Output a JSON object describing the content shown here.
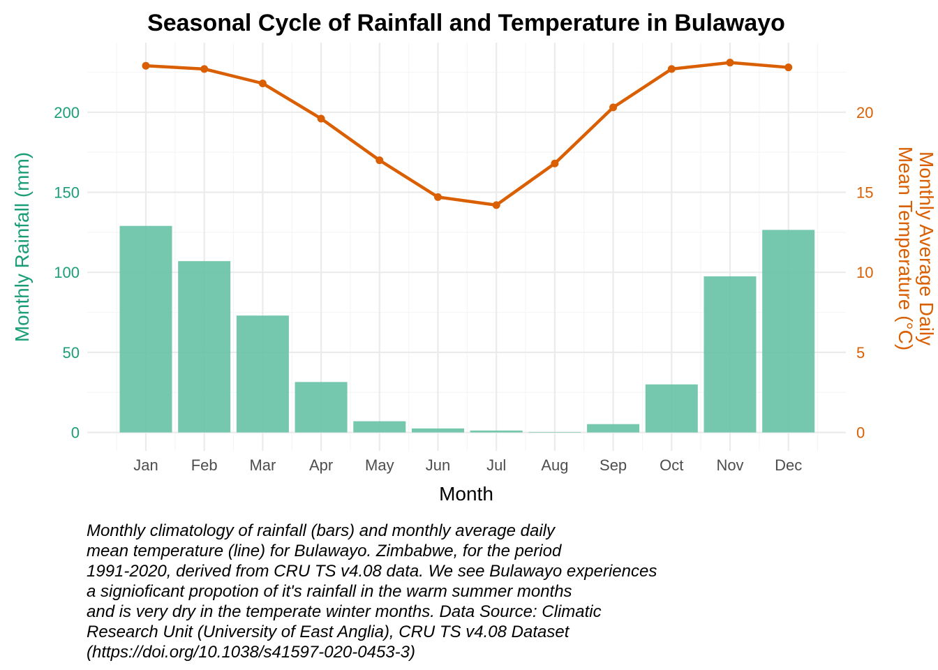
{
  "chart_data": {
    "type": "bar+line",
    "title": "Seasonal Cycle of Rainfall and Temperature in Bulawayo",
    "xlabel": "Month",
    "ylabel_left": "Monthly Rainfall (mm)",
    "ylabel_right": [
      "Monthly Average Daily",
      "Mean Temperature (°C)"
    ],
    "categories": [
      "Jan",
      "Feb",
      "Mar",
      "Apr",
      "May",
      "Jun",
      "Jul",
      "Aug",
      "Sep",
      "Oct",
      "Nov",
      "Dec"
    ],
    "series": [
      {
        "type": "bar",
        "axis": "left",
        "color": "#66c2a5",
        "values": [
          129,
          107,
          73,
          31.5,
          7,
          2.5,
          1.2,
          0.3,
          5.2,
          30,
          97.5,
          126.5
        ]
      },
      {
        "type": "line",
        "axis": "right",
        "color": "#d95f02",
        "values": [
          22.9,
          22.7,
          21.8,
          19.6,
          17.0,
          14.7,
          14.2,
          16.8,
          20.3,
          22.7,
          23.1,
          22.8
        ]
      }
    ],
    "ylim_left": [
      -11.5,
      243.5
    ],
    "ylim_right": [
      -1.15,
      24.35
    ],
    "yticks_left": [
      0,
      50,
      100,
      150,
      200
    ],
    "yticks_right": [
      0,
      5,
      10,
      15,
      20
    ],
    "grid": true,
    "colors": {
      "rainfall": "#1b9e77",
      "temperature": "#d95f02"
    }
  },
  "caption": [
    "Monthly climatology of rainfall (bars) and monthly average daily",
    "mean temperature (line) for Bulawayo. Zimbabwe, for the period",
    "1991-2020, derived from CRU TS v4.08 data. We see Bulawayo experiences",
    "a signioficant propotion of it's rainfall in the warm summer months",
    "and is very dry in the temperate winter months. Data Source: Climatic",
    "Research Unit (University of East Anglia), CRU TS v4.08 Dataset",
    "(https://doi.org/10.1038/s41597-020-0453-3)"
  ]
}
